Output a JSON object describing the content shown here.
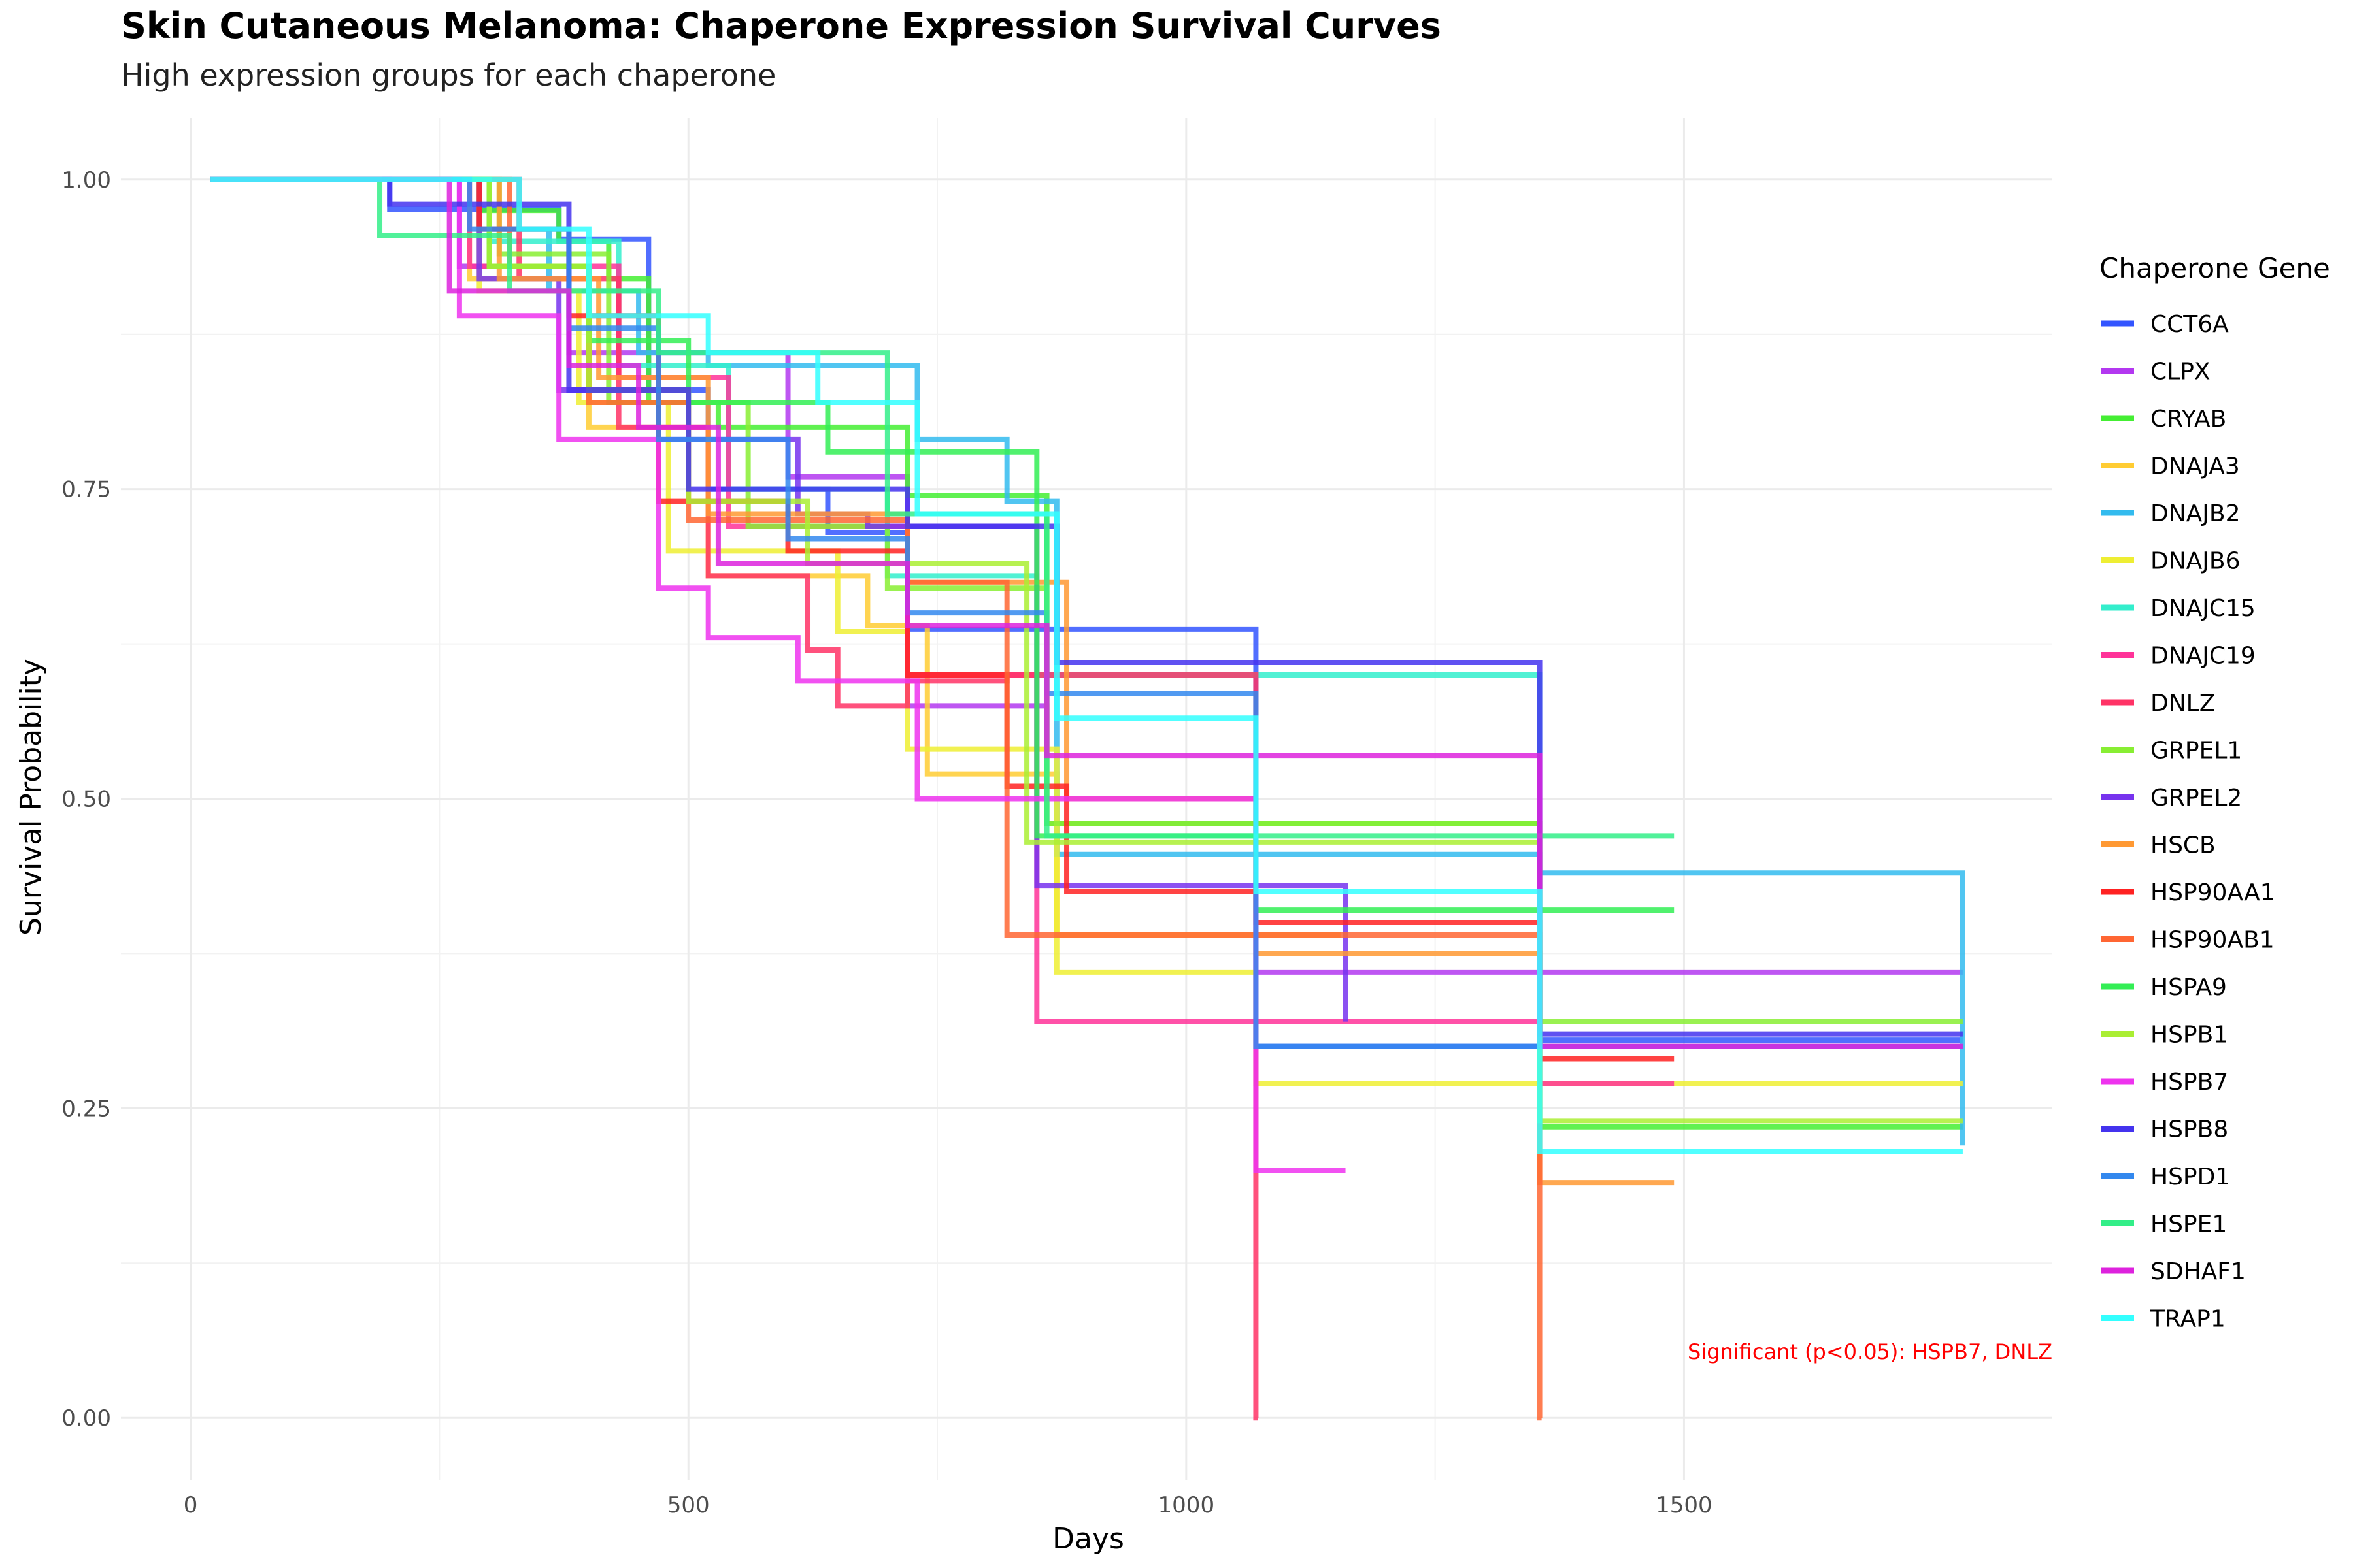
{
  "title": "Skin Cutaneous Melanoma: Chaperone Expression Survival Curves",
  "subtitle": "High expression groups for each chaperone",
  "chart_data": {
    "type": "line",
    "step": true,
    "xlabel": "Days",
    "ylabel": "Survival Probability",
    "xlim": [
      -70,
      1870
    ],
    "ylim": [
      -0.05,
      1.05
    ],
    "xticks": [
      0,
      500,
      1000,
      1500
    ],
    "xtick_labels": [
      "0",
      "500",
      "1000",
      "1500"
    ],
    "yticks": [
      0,
      0.25,
      0.5,
      0.75,
      1.0
    ],
    "ytick_labels": [
      "0.00",
      "0.25",
      "0.50",
      "0.75",
      "1.00"
    ],
    "grid": true,
    "legend_title": "Chaperone Gene",
    "legend_position": "right",
    "annotation": {
      "text": "Significant (p<0.05): HSPB7, DNLZ",
      "x": 1850,
      "y": 0.055,
      "color": "#ff0000"
    },
    "series": [
      {
        "name": "CCT6A",
        "color": "#3355ff",
        "x": [
          20,
          200,
          370,
          460,
          520,
          640,
          720,
          880,
          1070,
          1355,
          1780
        ],
        "y": [
          1.0,
          0.976,
          0.952,
          0.83,
          0.75,
          0.715,
          0.637,
          0.637,
          0.3,
          0.305,
          0.305
        ]
      },
      {
        "name": "CLPX",
        "color": "#b338f0",
        "x": [
          20,
          270,
          380,
          600,
          720,
          860,
          1070,
          1780
        ],
        "y": [
          1.0,
          0.93,
          0.86,
          0.76,
          0.575,
          0.48,
          0.36,
          0.36
        ]
      },
      {
        "name": "CRYAB",
        "color": "#44ee33",
        "x": [
          20,
          290,
          370,
          420,
          460,
          530,
          720,
          860,
          1355,
          1780
        ],
        "y": [
          1.0,
          0.975,
          0.95,
          0.92,
          0.82,
          0.8,
          0.745,
          0.48,
          0.235,
          0.235
        ]
      },
      {
        "name": "DNAJA3",
        "color": "#ffcc33",
        "x": [
          20,
          280,
          400,
          520,
          680,
          740,
          870,
          1155
        ],
        "y": [
          1.0,
          0.92,
          0.8,
          0.68,
          0.64,
          0.52,
          0.39,
          0.39
        ]
      },
      {
        "name": "DNAJB2",
        "color": "#33bbee",
        "x": [
          20,
          300,
          360,
          450,
          520,
          730,
          820,
          870,
          1070,
          1355,
          1780
        ],
        "y": [
          1.0,
          0.96,
          0.91,
          0.86,
          0.85,
          0.79,
          0.74,
          0.455,
          0.455,
          0.44,
          0.22
        ]
      },
      {
        "name": "DNAJB6",
        "color": "#eeee33",
        "x": [
          20,
          290,
          390,
          480,
          650,
          720,
          870,
          1070,
          1780
        ],
        "y": [
          1.0,
          0.91,
          0.82,
          0.7,
          0.635,
          0.54,
          0.36,
          0.27,
          0.27
        ]
      },
      {
        "name": "DNAJC15",
        "color": "#33eecc",
        "x": [
          20,
          300,
          430,
          540,
          700,
          850,
          1070,
          1355
        ],
        "y": [
          1.0,
          0.95,
          0.85,
          0.75,
          0.68,
          0.6,
          0.6,
          0.3
        ]
      },
      {
        "name": "DNAJC19",
        "color": "#ff3399",
        "x": [
          20,
          280,
          430,
          540,
          720,
          850,
          1070,
          1355,
          1490
        ],
        "y": [
          1.0,
          0.93,
          0.84,
          0.72,
          0.6,
          0.32,
          0.32,
          0.27,
          0.27
        ]
      },
      {
        "name": "DNLZ",
        "color": "#ff3366",
        "x": [
          20,
          330,
          430,
          520,
          620,
          650,
          720,
          820,
          1070,
          1072
        ],
        "y": [
          1.0,
          0.92,
          0.8,
          0.68,
          0.62,
          0.575,
          0.595,
          0.6,
          0.0,
          0.0
        ]
      },
      {
        "name": "GRPEL1",
        "color": "#88ee33",
        "x": [
          20,
          310,
          420,
          560,
          700,
          860,
          1355,
          1780
        ],
        "y": [
          1.0,
          0.94,
          0.82,
          0.72,
          0.67,
          0.48,
          0.32,
          0.32
        ]
      },
      {
        "name": "GRPEL2",
        "color": "#7733ee",
        "x": [
          20,
          290,
          370,
          470,
          610,
          680,
          850,
          1070,
          1160
        ],
        "y": [
          1.0,
          0.92,
          0.83,
          0.79,
          0.73,
          0.72,
          0.43,
          0.43,
          0.32
        ]
      },
      {
        "name": "HSCB",
        "color": "#ff9933",
        "x": [
          20,
          310,
          410,
          520,
          720,
          880,
          1070,
          1355,
          1490
        ],
        "y": [
          1.0,
          0.92,
          0.84,
          0.73,
          0.675,
          0.5,
          0.375,
          0.19,
          0.19
        ]
      },
      {
        "name": "HSP90AA1",
        "color": "#ff2222",
        "x": [
          20,
          290,
          380,
          470,
          600,
          720,
          820,
          880,
          1070,
          1355,
          1490
        ],
        "y": [
          1.0,
          0.96,
          0.89,
          0.74,
          0.7,
          0.6,
          0.51,
          0.425,
          0.4,
          0.29,
          0.29
        ]
      },
      {
        "name": "HSP90AB1",
        "color": "#ff6633",
        "x": [
          20,
          320,
          400,
          500,
          720,
          820,
          1070,
          1355,
          1357
        ],
        "y": [
          1.0,
          0.93,
          0.82,
          0.725,
          0.675,
          0.39,
          0.39,
          0.0,
          0.0
        ]
      },
      {
        "name": "HSPA9",
        "color": "#33ee55",
        "x": [
          20,
          300,
          400,
          500,
          640,
          850,
          1070,
          1355,
          1490
        ],
        "y": [
          1.0,
          0.93,
          0.87,
          0.82,
          0.78,
          0.47,
          0.41,
          0.41,
          0.41
        ]
      },
      {
        "name": "HSPB1",
        "color": "#aaee33",
        "x": [
          20,
          300,
          400,
          500,
          620,
          840,
          1070,
          1355,
          1780
        ],
        "y": [
          1.0,
          0.93,
          0.83,
          0.74,
          0.69,
          0.465,
          0.465,
          0.24,
          0.24
        ]
      },
      {
        "name": "HSPB7",
        "color": "#ee33ee",
        "x": [
          20,
          270,
          370,
          470,
          520,
          610,
          730,
          870,
          1070,
          1160
        ],
        "y": [
          1.0,
          0.89,
          0.79,
          0.67,
          0.63,
          0.595,
          0.5,
          0.5,
          0.2,
          0.2
        ]
      },
      {
        "name": "HSPB8",
        "color": "#4433ee",
        "x": [
          20,
          200,
          380,
          500,
          720,
          870,
          1355,
          1780
        ],
        "y": [
          1.0,
          0.98,
          0.83,
          0.75,
          0.72,
          0.61,
          0.31,
          0.31
        ]
      },
      {
        "name": "HSPD1",
        "color": "#3388ee",
        "x": [
          20,
          280,
          380,
          470,
          600,
          720,
          860,
          1070,
          1355,
          1780
        ],
        "y": [
          1.0,
          0.96,
          0.88,
          0.79,
          0.71,
          0.65,
          0.585,
          0.3,
          0.3,
          0.3
        ]
      },
      {
        "name": "HSPE1",
        "color": "#33ee88",
        "x": [
          20,
          190,
          320,
          470,
          700,
          860,
          1355,
          1490
        ],
        "y": [
          1.0,
          0.955,
          0.91,
          0.86,
          0.73,
          0.47,
          0.47,
          0.47
        ]
      },
      {
        "name": "SDHAF1",
        "color": "#dd22dd",
        "x": [
          20,
          260,
          380,
          450,
          530,
          720,
          860,
          1355,
          1780
        ],
        "y": [
          1.0,
          0.91,
          0.85,
          0.8,
          0.69,
          0.64,
          0.535,
          0.3,
          0.3
        ]
      },
      {
        "name": "TRAP1",
        "color": "#33ffff",
        "x": [
          20,
          330,
          400,
          520,
          630,
          730,
          870,
          1070,
          1355,
          1780
        ],
        "y": [
          1.0,
          0.96,
          0.89,
          0.86,
          0.82,
          0.73,
          0.565,
          0.425,
          0.215,
          0.215
        ]
      }
    ]
  }
}
